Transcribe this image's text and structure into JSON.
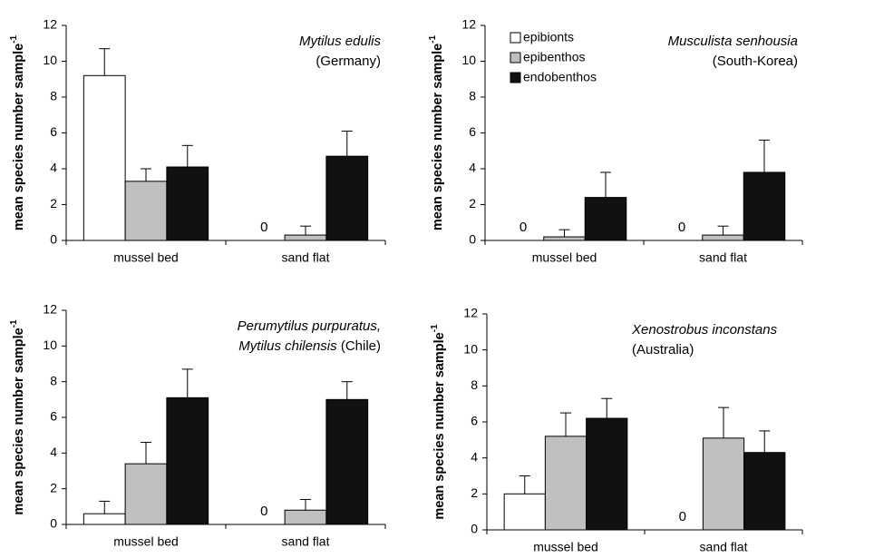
{
  "chart_data": [
    {
      "type": "bar",
      "annotation": [
        [
          {
            "text": "Mytilus edulis",
            "italic": true
          }
        ],
        [
          {
            "text": "(Germany)",
            "italic": false
          }
        ]
      ],
      "annotation_anchor": "end",
      "ylabel": "mean species number sample",
      "ylabel_sup": "-1",
      "categories": [
        "mussel bed",
        "sand flat"
      ],
      "series": [
        {
          "color": "#ffffff",
          "values": [
            9.2,
            0
          ],
          "errors": [
            1.5,
            null
          ]
        },
        {
          "color": "#c0c0c0",
          "values": [
            3.3,
            0.3
          ],
          "errors": [
            0.7,
            0.5
          ]
        },
        {
          "color": "#111111",
          "values": [
            4.1,
            4.7
          ],
          "errors": [
            1.2,
            1.4
          ]
        }
      ],
      "ylim": [
        0,
        12
      ],
      "yticks": [
        0,
        2,
        4,
        6,
        8,
        10,
        12
      ],
      "label_zero": true
    },
    {
      "type": "bar",
      "annotation": [
        [
          {
            "text": "Musculista senhousia",
            "italic": true
          }
        ],
        [
          {
            "text": "(South-Korea)",
            "italic": false
          }
        ]
      ],
      "annotation_anchor": "end",
      "ylabel": "mean species number sample",
      "ylabel_sup": "-1",
      "categories": [
        "mussel bed",
        "sand flat"
      ],
      "series": [
        {
          "name": "epibionts",
          "color": "#ffffff",
          "values": [
            0,
            0
          ],
          "errors": [
            null,
            null
          ]
        },
        {
          "name": "epibenthos",
          "color": "#c0c0c0",
          "values": [
            0.2,
            0.3
          ],
          "errors": [
            0.4,
            0.5
          ]
        },
        {
          "name": "endobenthos",
          "color": "#111111",
          "values": [
            2.4,
            3.8
          ],
          "errors": [
            1.4,
            1.8
          ]
        }
      ],
      "ylim": [
        0,
        12
      ],
      "yticks": [
        0,
        2,
        4,
        6,
        8,
        10,
        12
      ],
      "label_zero": true,
      "legend": "upper left"
    },
    {
      "type": "bar",
      "annotation": [
        [
          {
            "text": "Perumytilus purpuratus,",
            "italic": true
          }
        ],
        [
          {
            "text": "Mytilus chilensis",
            "italic": true
          },
          {
            "text": " (Chile)",
            "italic": false
          }
        ]
      ],
      "annotation_anchor": "end",
      "ylabel": "mean species number sample",
      "ylabel_sup": "-1",
      "categories": [
        "mussel bed",
        "sand flat"
      ],
      "series": [
        {
          "color": "#ffffff",
          "values": [
            0.6,
            0
          ],
          "errors": [
            0.7,
            null
          ]
        },
        {
          "color": "#c0c0c0",
          "values": [
            3.4,
            0.8
          ],
          "errors": [
            1.2,
            0.6
          ]
        },
        {
          "color": "#111111",
          "values": [
            7.1,
            7.0
          ],
          "errors": [
            1.6,
            1.0
          ]
        }
      ],
      "ylim": [
        0,
        12
      ],
      "yticks": [
        0,
        2,
        4,
        6,
        8,
        10,
        12
      ],
      "label_zero": true
    },
    {
      "type": "bar",
      "annotation": [
        [
          {
            "text": "Xenostrobus inconstans",
            "italic": true
          }
        ],
        [
          {
            "text": "(Australia)",
            "italic": false
          }
        ]
      ],
      "annotation_anchor": "start",
      "ylabel": "mean species number sample",
      "ylabel_sup": "-1",
      "categories": [
        "mussel bed",
        "sand flat"
      ],
      "series": [
        {
          "color": "#ffffff",
          "values": [
            2.0,
            0
          ],
          "errors": [
            1.0,
            null
          ]
        },
        {
          "color": "#c0c0c0",
          "values": [
            5.2,
            5.1
          ],
          "errors": [
            1.3,
            1.7
          ]
        },
        {
          "color": "#111111",
          "values": [
            6.2,
            4.3
          ],
          "errors": [
            1.1,
            1.2
          ]
        }
      ],
      "ylim": [
        0,
        12
      ],
      "yticks": [
        0,
        2,
        4,
        6,
        8,
        10,
        12
      ],
      "label_zero": true
    }
  ]
}
